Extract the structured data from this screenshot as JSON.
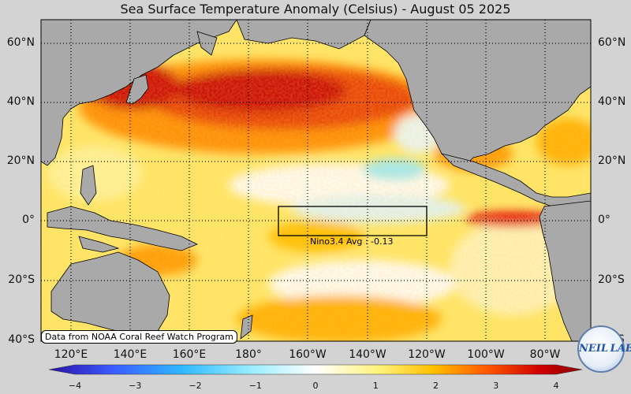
{
  "title": "Sea Surface Temperature Anomaly (Celsius) - August 05 2025",
  "map": {
    "projection": "Equirectangular",
    "lon_range": "110°E to 80°W (Pacific)",
    "lat_range": "40°S to 67°N",
    "land_color": "#a9a9a9",
    "grid": "dotted, 20° spacing",
    "lat_labels": [
      "60°N",
      "40°N",
      "20°N",
      "0°",
      "20°S",
      "40°S"
    ],
    "lon_labels": [
      "120°E",
      "140°E",
      "160°E",
      "180°",
      "160°W",
      "140°W",
      "120°W",
      "100°W",
      "80°W"
    ]
  },
  "nino_box": {
    "label": "Nino3.4 Avg : -0.13",
    "region": "5°S–5°N, 170°W–120°W",
    "avg": -0.13
  },
  "credit": "Data from NOAA Coral Reef Watch Program",
  "colorbar": {
    "min": -4,
    "max": 4,
    "ticks": [
      "−4",
      "−3",
      "−2",
      "−1",
      "0",
      "1",
      "2",
      "3",
      "4"
    ],
    "colors": [
      "#2b0fa6",
      "#3a5bff",
      "#2fb9ff",
      "#9aeeff",
      "#ffffff",
      "#fff27a",
      "#ffc000",
      "#ff5a00",
      "#d10000",
      "#8a0000"
    ]
  },
  "logo": {
    "text": "NEIL LAB"
  }
}
